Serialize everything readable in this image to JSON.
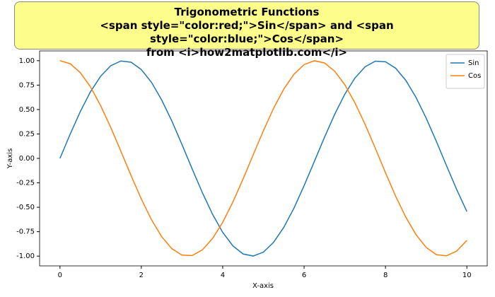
{
  "chart_data": {
    "type": "line",
    "title": "Trigonometric Functions\n<span style=\"color:red;\">Sin</span> and <span style=\"color:blue;\">Cos</span>\nfrom <i>how2matplotlib.com</i>",
    "xlabel": "X-axis",
    "ylabel": "Y-axis",
    "x": [
      0,
      0.25,
      0.5,
      0.75,
      1,
      1.25,
      1.5,
      1.75,
      2,
      2.25,
      2.5,
      2.75,
      3,
      3.25,
      3.5,
      3.75,
      4,
      4.25,
      4.5,
      4.75,
      5,
      5.25,
      5.5,
      5.75,
      6,
      6.25,
      6.5,
      6.75,
      7,
      7.25,
      7.5,
      7.75,
      8,
      8.25,
      8.5,
      8.75,
      9,
      9.25,
      9.5,
      9.75,
      10
    ],
    "series": [
      {
        "name": "Sin",
        "color": "#1f77b4",
        "values": [
          0,
          0.247,
          0.479,
          0.682,
          0.841,
          0.949,
          0.997,
          0.984,
          0.909,
          0.778,
          0.598,
          0.382,
          0.141,
          -0.108,
          -0.351,
          -0.572,
          -0.757,
          -0.895,
          -0.978,
          -0.999,
          -0.959,
          -0.859,
          -0.706,
          -0.51,
          -0.279,
          -0.033,
          0.215,
          0.45,
          0.657,
          0.823,
          0.938,
          0.995,
          0.989,
          0.923,
          0.798,
          0.624,
          0.412,
          0.174,
          -0.075,
          -0.319,
          -0.544
        ]
      },
      {
        "name": "Cos",
        "color": "#ff7f0e",
        "values": [
          1,
          0.969,
          0.878,
          0.732,
          0.54,
          0.315,
          0.071,
          -0.178,
          -0.416,
          -0.628,
          -0.801,
          -0.924,
          -0.99,
          -0.994,
          -0.936,
          -0.82,
          -0.654,
          -0.446,
          -0.211,
          0.038,
          0.284,
          0.513,
          0.709,
          0.861,
          0.96,
          0.999,
          0.977,
          0.893,
          0.754,
          0.568,
          0.347,
          0.104,
          -0.146,
          -0.388,
          -0.602,
          -0.78,
          -0.911,
          -0.985,
          -0.997,
          -0.948,
          -0.839
        ]
      }
    ],
    "xlim": [
      -0.5,
      10.5
    ],
    "xticks": [
      0,
      2,
      4,
      6,
      8,
      10
    ],
    "ylim": [
      -1.1,
      1.1
    ],
    "yticks": [
      {
        "value": -1,
        "label": "-1.00"
      },
      {
        "value": -0.75,
        "label": "-0.75"
      },
      {
        "value": -0.5,
        "label": "-0.50"
      },
      {
        "value": -0.25,
        "label": "-0.25"
      },
      {
        "value": 0,
        "label": "0.00"
      },
      {
        "value": 0.25,
        "label": "0.25"
      },
      {
        "value": 0.5,
        "label": "0.50"
      },
      {
        "value": 0.75,
        "label": "0.75"
      },
      {
        "value": 1,
        "label": "1.00"
      }
    ],
    "grid": false,
    "legend": "upper right"
  }
}
